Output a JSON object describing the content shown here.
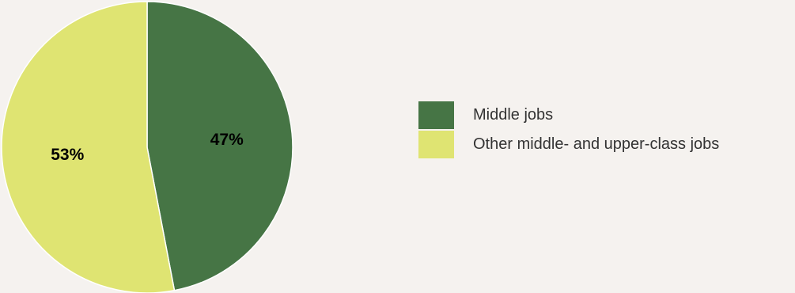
{
  "chart_data": {
    "type": "pie",
    "title": "",
    "start_angle_deg": 0,
    "direction": "clockwise",
    "slices": [
      {
        "label": "Middle jobs",
        "value": 47,
        "value_label": "47%",
        "color": "#467545",
        "label_color": "#ffffff"
      },
      {
        "label": "Other middle- and upper-class jobs",
        "value": 53,
        "value_label": "53%",
        "color": "#dfe472",
        "label_color": "#000000"
      }
    ],
    "legend": {
      "placement": "right"
    }
  },
  "colors": {
    "background": "#f5f2ef",
    "slice_border": "#ffffff"
  }
}
